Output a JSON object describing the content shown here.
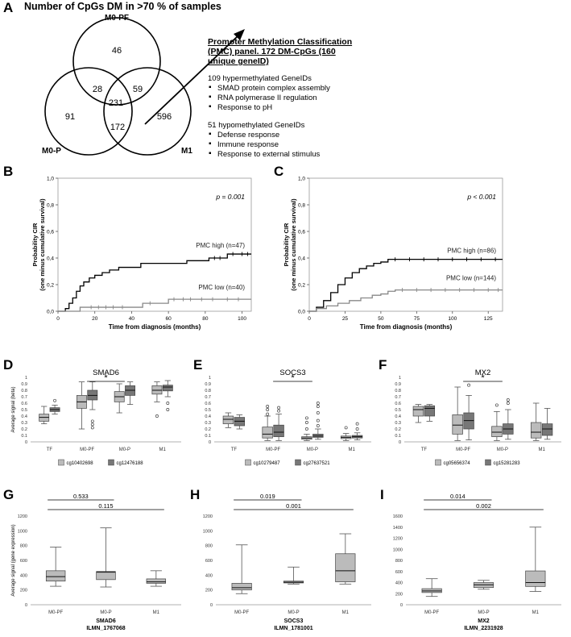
{
  "panel_labels": [
    "A",
    "B",
    "C",
    "D",
    "E",
    "F",
    "G",
    "H",
    "I"
  ],
  "venn": {
    "title": "Number of CpGs DM in >70 % of samples",
    "sets": [
      "M0-PF",
      "M0-P",
      "M1"
    ],
    "regions": {
      "pf_only": "46",
      "pf_p": "28",
      "pf_m1": "59",
      "all": "231",
      "p_only": "91",
      "p_m1": "172",
      "m1_only": "596"
    }
  },
  "pmc": {
    "heading": "Promoter Methylation Classification (PMC) panel. 172 DM-CpGs (160 unique geneID)",
    "hyper_title": "109 hypermethylated GeneIDs",
    "hyper_items": [
      "SMAD protein complex assembly",
      "RNA polymerase II regulation",
      "Response to pH"
    ],
    "hypo_title": "51 hypomethylated GeneIDs",
    "hypo_items": [
      "Defense response",
      "Immune response",
      "Response to external stimulus"
    ]
  },
  "chart_data": [
    {
      "panel": "B",
      "type": "line",
      "xlabel": "Time from diagnosis (months)",
      "ylabel": "Probability CIR (one minus cumulative survival)",
      "xlim": [
        0,
        105
      ],
      "ylim": [
        0,
        1.0
      ],
      "xticks": [
        "0",
        "20",
        "40",
        "60",
        "80",
        "100"
      ],
      "yticks": [
        "0,0",
        "0,2",
        "0,4",
        "0,6",
        "0,8",
        "1,0"
      ],
      "annotation": "p = 0.001",
      "series": [
        {
          "name": "PMC high (n=47)",
          "color": "#000000",
          "points": [
            [
              0,
              0
            ],
            [
              4,
              0.02
            ],
            [
              6,
              0.06
            ],
            [
              8,
              0.1
            ],
            [
              10,
              0.15
            ],
            [
              12,
              0.19
            ],
            [
              14,
              0.22
            ],
            [
              17,
              0.25
            ],
            [
              20,
              0.27
            ],
            [
              24,
              0.29
            ],
            [
              28,
              0.31
            ],
            [
              33,
              0.33
            ],
            [
              40,
              0.33
            ],
            [
              45,
              0.36
            ],
            [
              65,
              0.36
            ],
            [
              70,
              0.38
            ],
            [
              80,
              0.38
            ],
            [
              82,
              0.4
            ],
            [
              90,
              0.4
            ],
            [
              92,
              0.43
            ],
            [
              105,
              0.43
            ]
          ],
          "censor_x": [
            85,
            88,
            95,
            100,
            103
          ]
        },
        {
          "name": "PMC low (n=40)",
          "color": "#888888",
          "points": [
            [
              0,
              0
            ],
            [
              10,
              0
            ],
            [
              12,
              0.03
            ],
            [
              44,
              0.03
            ],
            [
              46,
              0.06
            ],
            [
              58,
              0.06
            ],
            [
              60,
              0.09
            ],
            [
              105,
              0.09
            ]
          ],
          "censor_x": [
            18,
            22,
            26,
            30,
            35,
            50,
            63,
            68,
            72,
            78,
            84,
            92,
            98
          ]
        }
      ]
    },
    {
      "panel": "C",
      "type": "line",
      "xlabel": "Time from diagnosis (months)",
      "ylabel": "Probability CIR (one minus cumulative survival)",
      "xlim": [
        0,
        135
      ],
      "ylim": [
        0,
        1.0
      ],
      "xticks": [
        "0",
        "25",
        "50",
        "75",
        "100",
        "125"
      ],
      "yticks": [
        "0,0",
        "0,2",
        "0,4",
        "0,6",
        "0,8",
        "1,0"
      ],
      "annotation": "p < 0.001",
      "series": [
        {
          "name": "PMC high (n=86)",
          "color": "#000000",
          "points": [
            [
              0,
              0
            ],
            [
              5,
              0.03
            ],
            [
              10,
              0.08
            ],
            [
              15,
              0.14
            ],
            [
              20,
              0.2
            ],
            [
              25,
              0.25
            ],
            [
              30,
              0.29
            ],
            [
              35,
              0.32
            ],
            [
              40,
              0.34
            ],
            [
              45,
              0.36
            ],
            [
              50,
              0.37
            ],
            [
              55,
              0.39
            ],
            [
              135,
              0.39
            ]
          ],
          "censor_x": [
            60,
            70,
            80,
            90,
            100,
            110,
            120,
            130
          ]
        },
        {
          "name": "PMC low (n=144)",
          "color": "#888888",
          "points": [
            [
              0,
              0
            ],
            [
              5,
              0.02
            ],
            [
              12,
              0.04
            ],
            [
              20,
              0.06
            ],
            [
              28,
              0.08
            ],
            [
              36,
              0.1
            ],
            [
              44,
              0.12
            ],
            [
              50,
              0.13
            ],
            [
              55,
              0.15
            ],
            [
              60,
              0.16
            ],
            [
              135,
              0.16
            ]
          ],
          "censor_x": [
            65,
            75,
            85,
            95,
            105,
            115,
            125,
            132
          ]
        }
      ]
    },
    {
      "panel": "D",
      "type": "boxplot",
      "title": "SMAD6",
      "ylabel": "Average signal (beta)",
      "ylim": [
        0,
        1
      ],
      "yticks": [
        "0",
        "0.1",
        "0.2",
        "0.3",
        "0.4",
        "0.5",
        "0.6",
        "0.7",
        "0.8",
        "0.9",
        "1"
      ],
      "categories": [
        "TF",
        "M0-PF",
        "M0-P",
        "M1"
      ],
      "legend": [
        "cg10402698",
        "cg12476188"
      ],
      "significance": {
        "from": "M0-PF",
        "to": "M0-P",
        "label": "*"
      },
      "series": [
        {
          "name": "cg10402698",
          "color": "#bbbbbb",
          "boxes": [
            [
              0.28,
              0.32,
              0.38,
              0.43,
              0.55
            ],
            [
              0.2,
              0.52,
              0.62,
              0.72,
              0.93
            ],
            [
              0.45,
              0.62,
              0.7,
              0.78,
              0.9
            ],
            [
              0.62,
              0.74,
              0.8,
              0.87,
              0.93
            ]
          ],
          "outliers": [
            [],
            [],
            [],
            [
              0.4
            ]
          ]
        },
        {
          "name": "cg12476188",
          "color": "#777777",
          "boxes": [
            [
              0.43,
              0.47,
              0.5,
              0.53,
              0.57
            ],
            [
              0.5,
              0.65,
              0.72,
              0.8,
              0.93
            ],
            [
              0.58,
              0.72,
              0.8,
              0.87,
              0.93
            ],
            [
              0.7,
              0.79,
              0.85,
              0.88,
              0.95
            ]
          ],
          "outliers": [
            [
              0.64
            ],
            [
              0.22,
              0.27,
              0.32
            ],
            [],
            [
              0.5,
              0.6
            ]
          ]
        }
      ]
    },
    {
      "panel": "E",
      "type": "boxplot",
      "title": "SOCS3",
      "ylabel": "",
      "ylim": [
        0,
        1
      ],
      "yticks": [
        "0",
        "0.1",
        "0.2",
        "0.3",
        "0.4",
        "0.5",
        "0.6",
        "0.7",
        "0.8",
        "0.9",
        "1"
      ],
      "categories": [
        "TF",
        "M0-PF",
        "M0-P",
        "M1"
      ],
      "legend": [
        "cg10279487",
        "cg27637521"
      ],
      "significance": {
        "from": "M0-PF",
        "to": "M0-P",
        "label": "*"
      },
      "series": [
        {
          "name": "cg10279487",
          "color": "#bbbbbb",
          "boxes": [
            [
              0.22,
              0.28,
              0.35,
              0.4,
              0.45
            ],
            [
              0.02,
              0.06,
              0.12,
              0.23,
              0.4
            ],
            [
              0.02,
              0.04,
              0.06,
              0.08,
              0.12
            ],
            [
              0.02,
              0.05,
              0.07,
              0.09,
              0.13
            ]
          ],
          "outliers": [
            [],
            [
              0.43,
              0.5,
              0.55
            ],
            [
              0.2,
              0.3,
              0.37
            ],
            [
              0.22
            ]
          ]
        },
        {
          "name": "cg27637521",
          "color": "#777777",
          "boxes": [
            [
              0.2,
              0.25,
              0.32,
              0.38,
              0.42
            ],
            [
              0.02,
              0.08,
              0.15,
              0.26,
              0.43
            ],
            [
              0.04,
              0.07,
              0.09,
              0.12,
              0.2
            ],
            [
              0.03,
              0.06,
              0.08,
              0.1,
              0.14
            ]
          ],
          "outliers": [
            [],
            [
              0.48,
              0.53
            ],
            [
              0.25,
              0.33,
              0.45,
              0.55,
              0.6
            ],
            [
              0.2,
              0.28
            ]
          ]
        }
      ]
    },
    {
      "panel": "F",
      "type": "boxplot",
      "title": "MX2",
      "ylabel": "",
      "ylim": [
        0,
        1
      ],
      "yticks": [
        "0",
        "0.1",
        "0.2",
        "0.3",
        "0.4",
        "0.5",
        "0.6",
        "0.7",
        "0.8",
        "0.9",
        "1"
      ],
      "categories": [
        "TF",
        "M0-PF",
        "M0-P",
        "M1"
      ],
      "legend": [
        "cg05656374",
        "cg15281283"
      ],
      "significance": {
        "from": "M0-PF",
        "to": "M0-P",
        "label": "*"
      },
      "series": [
        {
          "name": "cg05656374",
          "color": "#bbbbbb",
          "boxes": [
            [
              0.3,
              0.4,
              0.5,
              0.55,
              0.58
            ],
            [
              0.02,
              0.12,
              0.26,
              0.42,
              0.85
            ],
            [
              0.02,
              0.08,
              0.15,
              0.24,
              0.47
            ],
            [
              0.02,
              0.06,
              0.15,
              0.3,
              0.6
            ]
          ],
          "outliers": [
            [],
            [],
            [
              0.57
            ],
            []
          ]
        },
        {
          "name": "cg15281283",
          "color": "#777777",
          "boxes": [
            [
              0.32,
              0.4,
              0.52,
              0.56,
              0.58
            ],
            [
              0.03,
              0.2,
              0.33,
              0.45,
              0.72
            ],
            [
              0.04,
              0.12,
              0.2,
              0.28,
              0.5
            ],
            [
              0.04,
              0.1,
              0.2,
              0.28,
              0.52
            ]
          ],
          "outliers": [
            [],
            [
              0.88
            ],
            [
              0.6,
              0.65
            ],
            []
          ]
        }
      ]
    },
    {
      "panel": "G",
      "type": "boxplot",
      "ylabel": "Average signal (gene expression)",
      "ylim": [
        0,
        1200
      ],
      "yticks": [
        "0",
        "200",
        "400",
        "600",
        "800",
        "1000",
        "1200"
      ],
      "categories": [
        "M0-PF",
        "M0-P",
        "M1"
      ],
      "xlabel": "SMAD6",
      "xlabel2": "ILMN_1767068",
      "brackets": [
        {
          "from": "M0-PF",
          "to": "M0-P",
          "label": "0.533"
        },
        {
          "from": "M0-PF",
          "to": "M1",
          "label": "0.115"
        }
      ],
      "series": [
        {
          "name": "",
          "color": "#bbbbbb",
          "boxes": [
            [
              250,
              320,
              380,
              460,
              780
            ],
            [
              240,
              340,
              440,
              450,
              1040
            ],
            [
              250,
              290,
              310,
              350,
              460
            ]
          ],
          "outliers": [
            [],
            [],
            []
          ]
        }
      ]
    },
    {
      "panel": "H",
      "type": "boxplot",
      "ylabel": "",
      "ylim": [
        0,
        1200
      ],
      "yticks": [
        "0",
        "200",
        "400",
        "600",
        "800",
        "1000",
        "1200"
      ],
      "categories": [
        "M0-PF",
        "M0-P",
        "M1"
      ],
      "xlabel": "SOCS3",
      "xlabel2": "ILMN_1781001",
      "brackets": [
        {
          "from": "M0-PF",
          "to": "M0-P",
          "label": "0.019"
        },
        {
          "from": "M0-PF",
          "to": "M1",
          "label": "0.001"
        }
      ],
      "series": [
        {
          "name": "",
          "color": "#bbbbbb",
          "boxes": [
            [
              150,
              200,
              230,
              290,
              810
            ],
            [
              280,
              295,
              305,
              320,
              510
            ],
            [
              280,
              310,
              460,
              690,
              960
            ]
          ],
          "outliers": [
            [],
            [],
            []
          ]
        }
      ]
    },
    {
      "panel": "I",
      "type": "boxplot",
      "ylabel": "",
      "ylim": [
        0,
        1600
      ],
      "yticks": [
        "0",
        "200",
        "400",
        "600",
        "800",
        "1000",
        "1200",
        "1400",
        "1600"
      ],
      "categories": [
        "M0-PF",
        "M0-P",
        "M1"
      ],
      "xlabel": "MX2",
      "xlabel2": "ILMN_2231928",
      "brackets": [
        {
          "from": "M0-PF",
          "to": "M0-P",
          "label": "0.014"
        },
        {
          "from": "M0-PF",
          "to": "M1",
          "label": "0.002"
        }
      ],
      "series": [
        {
          "name": "",
          "color": "#bbbbbb",
          "boxes": [
            [
              150,
              220,
              250,
              290,
              470
            ],
            [
              280,
              310,
              360,
              400,
              440
            ],
            [
              240,
              330,
              400,
              610,
              1400
            ]
          ],
          "outliers": [
            [],
            [],
            []
          ]
        }
      ]
    }
  ]
}
